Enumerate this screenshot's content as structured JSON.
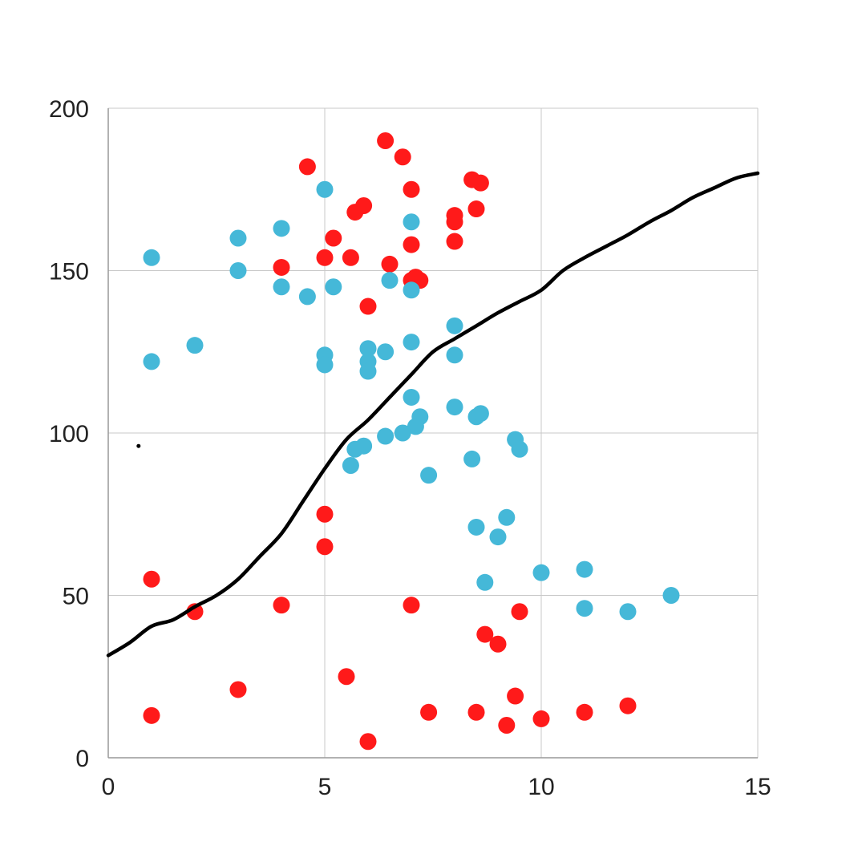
{
  "chart_data": {
    "type": "scatter",
    "title": "",
    "xlabel": "",
    "ylabel": "",
    "xlim": [
      0,
      15
    ],
    "ylim": [
      0,
      200
    ],
    "x_ticks": [
      0,
      5,
      10,
      15
    ],
    "y_ticks": [
      0,
      50,
      100,
      150,
      200
    ],
    "x_tick_labels": [
      "0",
      "5",
      "10",
      "15"
    ],
    "y_tick_labels": [
      "0",
      "50",
      "100",
      "150",
      "200"
    ],
    "grid": true,
    "legend": "none",
    "colors": {
      "series_red": "#ff1a1a",
      "series_blue": "#45b8d8",
      "curve": "#000000",
      "grid": "#c8c8c8",
      "axis": "#999999"
    },
    "series": [
      {
        "color": "#ff1a1a",
        "points": [
          [
            4.6,
            182
          ],
          [
            6.4,
            190
          ],
          [
            6.8,
            185
          ],
          [
            7.0,
            175
          ],
          [
            8.4,
            178
          ],
          [
            8.6,
            177
          ],
          [
            5.7,
            168
          ],
          [
            5.9,
            170
          ],
          [
            8.0,
            167
          ],
          [
            8.0,
            165
          ],
          [
            8.5,
            169
          ],
          [
            5.2,
            160
          ],
          [
            7.0,
            158
          ],
          [
            8.0,
            159
          ],
          [
            4.0,
            151
          ],
          [
            5.0,
            154
          ],
          [
            5.6,
            154
          ],
          [
            6.5,
            152
          ],
          [
            7.0,
            147
          ],
          [
            7.1,
            148
          ],
          [
            7.2,
            147
          ],
          [
            6.0,
            139
          ],
          [
            5.0,
            75
          ],
          [
            5.0,
            65
          ],
          [
            1.0,
            55
          ],
          [
            2.0,
            45
          ],
          [
            4.0,
            47
          ],
          [
            7.0,
            47
          ],
          [
            9.5,
            45
          ],
          [
            8.7,
            38
          ],
          [
            9.0,
            35
          ],
          [
            5.5,
            25
          ],
          [
            3.0,
            21
          ],
          [
            9.4,
            19
          ],
          [
            1.0,
            13
          ],
          [
            7.4,
            14
          ],
          [
            8.5,
            14
          ],
          [
            11.0,
            14
          ],
          [
            12.0,
            16
          ],
          [
            10.0,
            12
          ],
          [
            9.2,
            10
          ],
          [
            6.0,
            5
          ]
        ]
      },
      {
        "color": "#45b8d8",
        "points": [
          [
            5.0,
            175
          ],
          [
            7.0,
            165
          ],
          [
            3.0,
            160
          ],
          [
            4.0,
            163
          ],
          [
            1.0,
            154
          ],
          [
            3.0,
            150
          ],
          [
            4.0,
            145
          ],
          [
            4.6,
            142
          ],
          [
            5.2,
            145
          ],
          [
            6.5,
            147
          ],
          [
            7.0,
            144
          ],
          [
            8.0,
            133
          ],
          [
            7.0,
            128
          ],
          [
            6.0,
            126
          ],
          [
            6.4,
            125
          ],
          [
            5.0,
            124
          ],
          [
            5.0,
            121
          ],
          [
            6.0,
            122
          ],
          [
            6.0,
            119
          ],
          [
            8.0,
            124
          ],
          [
            2.0,
            127
          ],
          [
            1.0,
            122
          ],
          [
            7.0,
            111
          ],
          [
            8.0,
            108
          ],
          [
            8.5,
            105
          ],
          [
            8.6,
            106
          ],
          [
            7.2,
            105
          ],
          [
            7.1,
            102
          ],
          [
            6.8,
            100
          ],
          [
            6.4,
            99
          ],
          [
            5.9,
            96
          ],
          [
            5.7,
            95
          ],
          [
            5.6,
            90
          ],
          [
            7.4,
            87
          ],
          [
            8.4,
            92
          ],
          [
            9.4,
            98
          ],
          [
            9.5,
            95
          ],
          [
            9.2,
            74
          ],
          [
            8.5,
            71
          ],
          [
            9.0,
            68
          ],
          [
            8.7,
            54
          ],
          [
            10.0,
            57
          ],
          [
            11.0,
            58
          ],
          [
            11.0,
            46
          ],
          [
            12.0,
            45
          ],
          [
            13.0,
            50
          ]
        ]
      }
    ],
    "curve": {
      "color": "#000000",
      "points": [
        [
          0.0,
          31.5
        ],
        [
          0.5,
          35.5
        ],
        [
          1.0,
          40.5
        ],
        [
          1.5,
          42.5
        ],
        [
          2.0,
          46.5
        ],
        [
          2.5,
          50.0
        ],
        [
          3.0,
          55.0
        ],
        [
          3.5,
          62.0
        ],
        [
          4.0,
          69.0
        ],
        [
          4.5,
          79.0
        ],
        [
          5.0,
          89.0
        ],
        [
          5.5,
          98.0
        ],
        [
          6.0,
          104.0
        ],
        [
          6.5,
          111.0
        ],
        [
          7.0,
          118.0
        ],
        [
          7.5,
          125.0
        ],
        [
          8.0,
          129.0
        ],
        [
          8.5,
          133.0
        ],
        [
          9.0,
          137.0
        ],
        [
          9.5,
          140.5
        ],
        [
          10.0,
          144.0
        ],
        [
          10.5,
          150.0
        ],
        [
          11.0,
          154.0
        ],
        [
          11.5,
          157.5
        ],
        [
          12.0,
          161.0
        ],
        [
          12.5,
          165.0
        ],
        [
          13.0,
          168.5
        ],
        [
          13.5,
          172.5
        ],
        [
          14.0,
          175.5
        ],
        [
          14.5,
          178.5
        ],
        [
          15.0,
          180.0
        ]
      ]
    },
    "stray_marks": [
      [
        0.7,
        96
      ]
    ]
  }
}
